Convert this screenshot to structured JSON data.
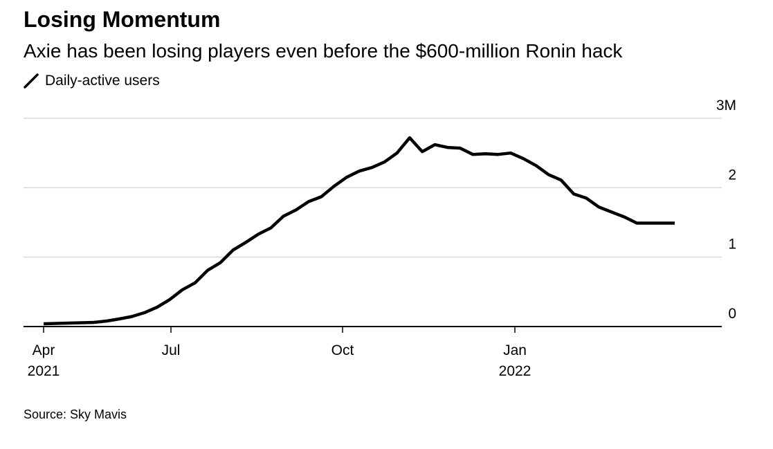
{
  "title": "Losing Momentum",
  "subtitle": "Axie has been losing players even before the $600-million Ronin hack",
  "legend": {
    "label": "Daily-active users",
    "icon": "line-swatch-icon"
  },
  "source": "Source: Sky Mavis",
  "colors": {
    "line": "#000000",
    "grid": "#d9d9d9",
    "axis": "#000000"
  },
  "chart_data": {
    "type": "line",
    "title": "Losing Momentum",
    "subtitle": "Axie has been losing players even before the $600-million Ronin hack",
    "xlabel": "",
    "ylabel": "",
    "ylim": [
      0,
      3
    ],
    "y_ticks": [
      {
        "value": 0,
        "label": "0"
      },
      {
        "value": 1,
        "label": "1"
      },
      {
        "value": 2,
        "label": "2"
      },
      {
        "value": 3,
        "label": "3M"
      }
    ],
    "x_ticks": [
      {
        "t": 0,
        "label": "Apr",
        "year": "2021"
      },
      {
        "t": 13,
        "label": "Jul",
        "year": ""
      },
      {
        "t": 26.3,
        "label": "Oct",
        "year": ""
      },
      {
        "t": 39.4,
        "label": "Jan",
        "year": "2022"
      }
    ],
    "x_range": [
      0,
      52
    ],
    "grid": true,
    "legend_position": "top-left",
    "series": [
      {
        "name": "Daily-active users",
        "unit": "M",
        "x": [
          0,
          1,
          2,
          3,
          4,
          5,
          6,
          7,
          8,
          9,
          10,
          11,
          12,
          13,
          14,
          15,
          16,
          17,
          18,
          19,
          20,
          21,
          22,
          23,
          24,
          25,
          26,
          27,
          28,
          29,
          30,
          31,
          32,
          33,
          34,
          35,
          36,
          37,
          38,
          39,
          40,
          41,
          42,
          43,
          44,
          45,
          46,
          47,
          48,
          49,
          50
        ],
        "values": [
          0.04,
          0.045,
          0.05,
          0.055,
          0.06,
          0.08,
          0.11,
          0.145,
          0.2,
          0.28,
          0.39,
          0.53,
          0.63,
          0.81,
          0.92,
          1.1,
          1.21,
          1.33,
          1.42,
          1.59,
          1.68,
          1.8,
          1.87,
          2.02,
          2.15,
          2.24,
          2.29,
          2.37,
          2.5,
          2.72,
          2.52,
          2.62,
          2.58,
          2.57,
          2.48,
          2.49,
          2.48,
          2.5,
          2.42,
          2.32,
          2.19,
          2.11,
          1.91,
          1.85,
          1.72,
          1.65,
          1.58,
          1.49,
          1.49,
          1.49,
          1.49
        ]
      }
    ]
  }
}
